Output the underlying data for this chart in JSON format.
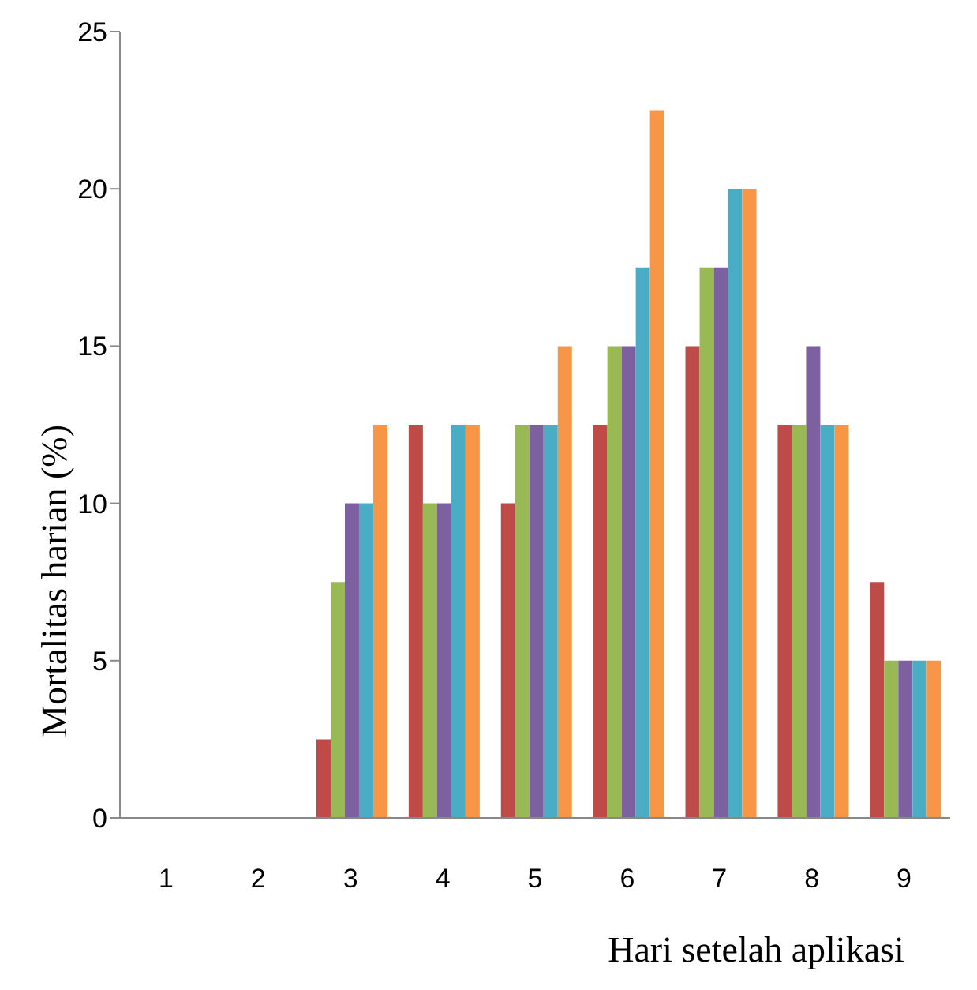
{
  "chart_data": {
    "type": "bar",
    "xlabel": "Hari setelah aplikasi",
    "ylabel": "Mortalitas harian (%)",
    "categories": [
      "1",
      "2",
      "3",
      "4",
      "5",
      "6",
      "7",
      "8",
      "9"
    ],
    "series": [
      {
        "color": "#be4b48",
        "values": [
          0,
          0,
          2.5,
          12.5,
          10,
          12.5,
          15,
          12.5,
          7.5
        ]
      },
      {
        "color": "#98b954",
        "values": [
          0,
          0,
          7.5,
          10,
          12.5,
          15,
          17.5,
          12.5,
          5
        ]
      },
      {
        "color": "#7d60a0",
        "values": [
          0,
          0,
          10,
          10,
          12.5,
          15,
          17.5,
          15,
          5
        ]
      },
      {
        "color": "#4bacc6",
        "values": [
          0,
          0,
          10,
          12.5,
          12.5,
          17.5,
          20,
          12.5,
          5
        ]
      },
      {
        "color": "#f79646",
        "values": [
          0,
          0,
          12.5,
          12.5,
          15,
          22.5,
          20,
          12.5,
          5
        ]
      }
    ],
    "ylim": [
      0,
      25
    ],
    "yticks": [
      0,
      5,
      10,
      15,
      20,
      25
    ],
    "grid": false,
    "legend": false
  }
}
